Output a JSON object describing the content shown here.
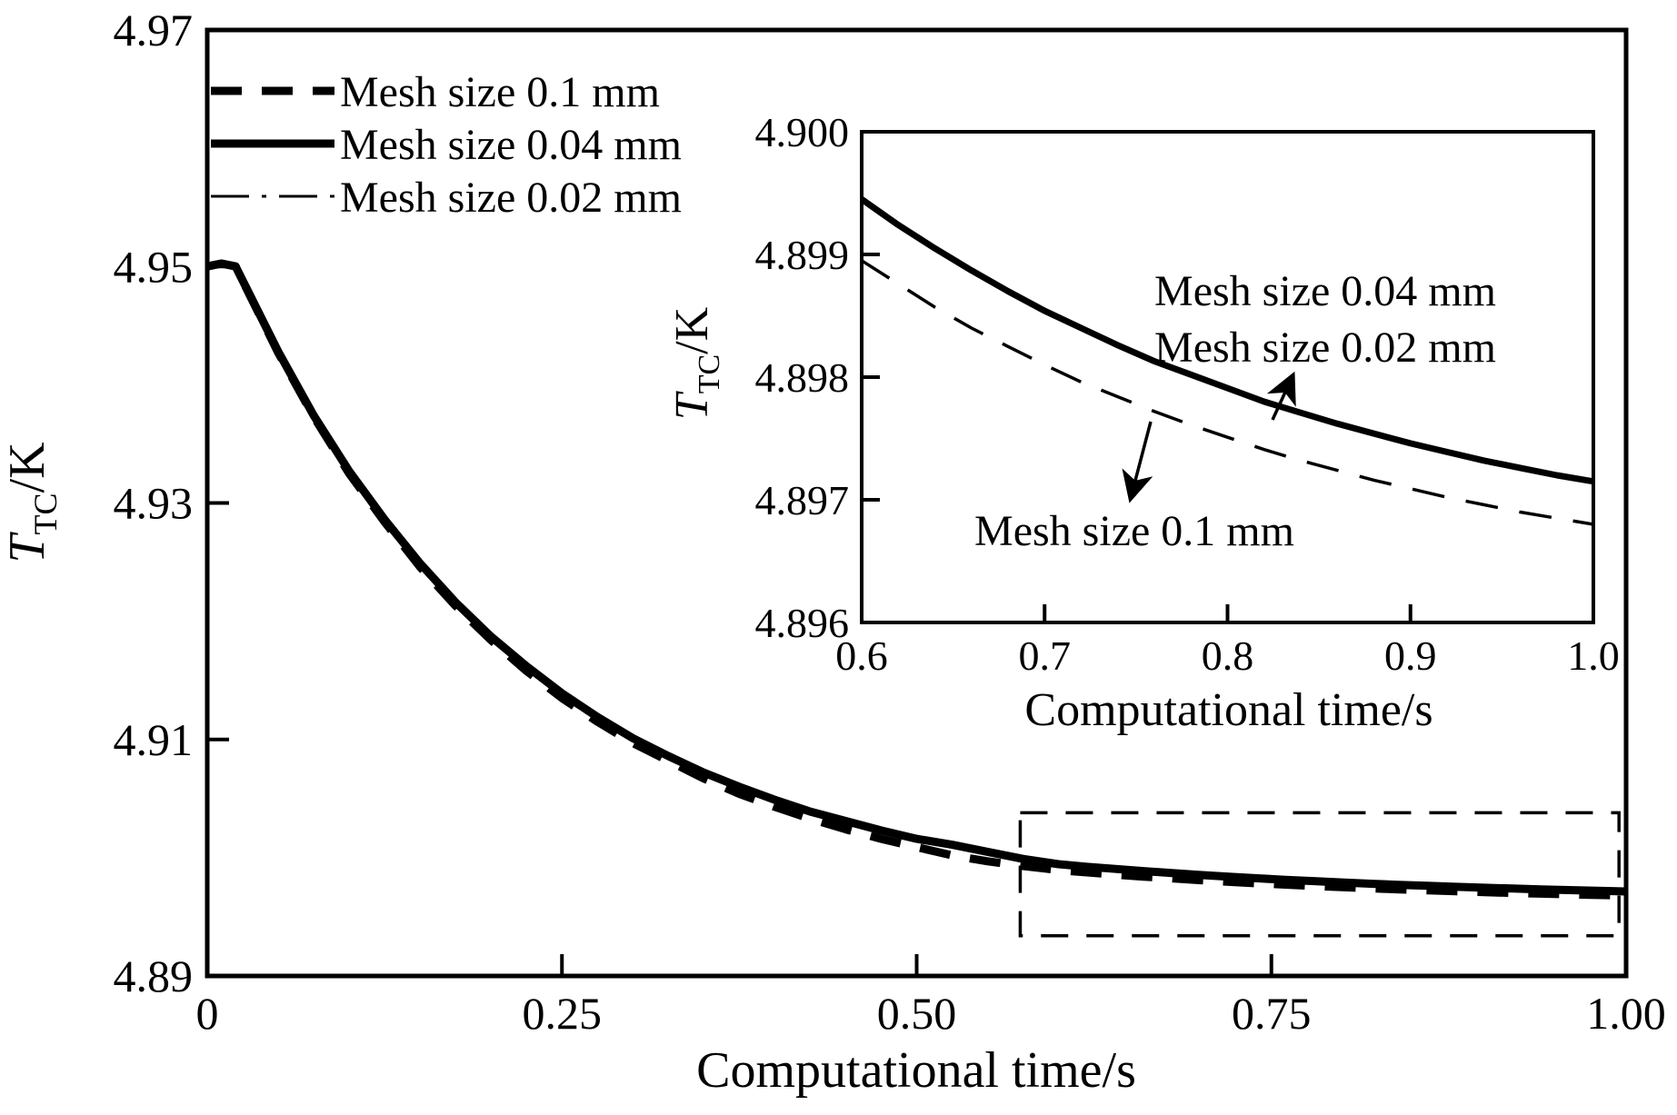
{
  "main": {
    "x_title": "Computational time/s",
    "y_title": {
      "symbol": "T",
      "subscript": "TC",
      "unit": "/K"
    },
    "x_range": [
      0,
      1
    ],
    "y_range": [
      4.89,
      4.97
    ],
    "x_ticks": [
      {
        "v": 0,
        "label": "0"
      },
      {
        "v": 0.25,
        "label": "0.25"
      },
      {
        "v": 0.5,
        "label": "0.50"
      },
      {
        "v": 0.75,
        "label": "0.75"
      },
      {
        "v": 1,
        "label": "1.00"
      }
    ],
    "y_ticks": [
      {
        "v": 4.89,
        "label": "4.89"
      },
      {
        "v": 4.91,
        "label": "4.91"
      },
      {
        "v": 4.93,
        "label": "4.93"
      },
      {
        "v": 4.95,
        "label": "4.95"
      },
      {
        "v": 4.97,
        "label": "4.97"
      }
    ],
    "legend": [
      {
        "label": "Mesh size 0.1 mm",
        "style": "dashed-thick"
      },
      {
        "label": "Mesh size 0.04 mm",
        "style": "solid-thick"
      },
      {
        "label": "Mesh size 0.02 mm",
        "style": "dashdot-thin"
      }
    ]
  },
  "inset": {
    "x_title": "Computational time/s",
    "y_title": {
      "symbol": "T",
      "subscript": "TC",
      "unit": "/K"
    },
    "x_range": [
      0.6,
      1.0
    ],
    "y_range": [
      4.896,
      4.9
    ],
    "x_ticks": [
      {
        "v": 0.6,
        "label": "0.6"
      },
      {
        "v": 0.7,
        "label": "0.7"
      },
      {
        "v": 0.8,
        "label": "0.8"
      },
      {
        "v": 0.9,
        "label": "0.9"
      },
      {
        "v": 1.0,
        "label": "1.0"
      }
    ],
    "y_ticks": [
      {
        "v": 4.896,
        "label": "4.896"
      },
      {
        "v": 4.897,
        "label": "4.897"
      },
      {
        "v": 4.898,
        "label": "4.898"
      },
      {
        "v": 4.899,
        "label": "4.899"
      },
      {
        "v": 4.9,
        "label": "4.900"
      }
    ],
    "annotations": {
      "solid_line1": "Mesh size 0.04 mm",
      "solid_line2": "Mesh size 0.02 mm",
      "dashed": "Mesh size 0.1 mm"
    }
  },
  "chart_data": {
    "type": "line",
    "title": "",
    "xlabel": "Computational time/s",
    "ylabel": "T_TC/K",
    "x_range": [
      0,
      1
    ],
    "y_range": [
      4.89,
      4.97
    ],
    "legend_position": "upper-left",
    "grid": false,
    "zoom_region": {
      "x": [
        0.573,
        0.995
      ],
      "y": [
        4.8934,
        4.9038
      ]
    },
    "inset_axes": {
      "x_range": [
        0.6,
        1.0
      ],
      "y_range": [
        4.896,
        4.9
      ]
    },
    "series": [
      {
        "name": "Mesh size 0.1 mm",
        "style": "dashed-thick",
        "points": [
          [
            0,
            4.95
          ],
          [
            0.01,
            4.95025
          ],
          [
            0.02,
            4.95
          ],
          [
            0.05,
            4.9427
          ],
          [
            0.075,
            4.9373
          ],
          [
            0.1,
            4.9325
          ],
          [
            0.125,
            4.9284
          ],
          [
            0.15,
            4.9246
          ],
          [
            0.175,
            4.9213
          ],
          [
            0.2,
            4.9184
          ],
          [
            0.225,
            4.9158
          ],
          [
            0.25,
            4.9135
          ],
          [
            0.275,
            4.9115
          ],
          [
            0.3,
            4.9097
          ],
          [
            0.325,
            4.9082
          ],
          [
            0.35,
            4.9067
          ],
          [
            0.375,
            4.9054
          ],
          [
            0.4,
            4.9043
          ],
          [
            0.425,
            4.9033
          ],
          [
            0.45,
            4.9024
          ],
          [
            0.475,
            4.9016
          ],
          [
            0.5,
            4.9009
          ],
          [
            0.525,
            4.9002
          ],
          [
            0.55,
            4.8997
          ],
          [
            0.575,
            4.8993
          ],
          [
            0.6,
            4.89895
          ],
          [
            0.62,
            4.89876
          ],
          [
            0.64,
            4.89857
          ],
          [
            0.66,
            4.8984
          ],
          [
            0.68,
            4.89825
          ],
          [
            0.7,
            4.8981
          ],
          [
            0.72,
            4.89796
          ],
          [
            0.74,
            4.89784
          ],
          [
            0.76,
            4.89772
          ],
          [
            0.78,
            4.89761
          ],
          [
            0.8,
            4.89751
          ],
          [
            0.82,
            4.89741
          ],
          [
            0.84,
            4.89732
          ],
          [
            0.86,
            4.89724
          ],
          [
            0.88,
            4.89716
          ],
          [
            0.9,
            4.89709
          ],
          [
            0.92,
            4.89702
          ],
          [
            0.94,
            4.89696
          ],
          [
            0.96,
            4.8969
          ],
          [
            0.98,
            4.89685
          ],
          [
            1,
            4.8968
          ]
        ]
      },
      {
        "name": "Mesh size 0.04 mm",
        "style": "solid-thick",
        "points": [
          [
            0,
            4.95
          ],
          [
            0.01,
            4.95025
          ],
          [
            0.02,
            4.95
          ],
          [
            0.05,
            4.9428
          ],
          [
            0.075,
            4.9374
          ],
          [
            0.1,
            4.9327
          ],
          [
            0.125,
            4.9286
          ],
          [
            0.15,
            4.9249
          ],
          [
            0.175,
            4.9216
          ],
          [
            0.2,
            4.9187
          ],
          [
            0.225,
            4.9162
          ],
          [
            0.25,
            4.9139
          ],
          [
            0.275,
            4.9119
          ],
          [
            0.3,
            4.9101
          ],
          [
            0.325,
            4.9086
          ],
          [
            0.35,
            4.9072
          ],
          [
            0.375,
            4.906
          ],
          [
            0.4,
            4.9049
          ],
          [
            0.425,
            4.9039
          ],
          [
            0.45,
            4.9031
          ],
          [
            0.475,
            4.9023
          ],
          [
            0.5,
            4.9016
          ],
          [
            0.525,
            4.9011
          ],
          [
            0.55,
            4.9005
          ],
          [
            0.575,
            4.8999
          ],
          [
            0.6,
            4.89945
          ],
          [
            0.62,
            4.89924
          ],
          [
            0.64,
            4.89905
          ],
          [
            0.66,
            4.89887
          ],
          [
            0.68,
            4.8987
          ],
          [
            0.7,
            4.89854
          ],
          [
            0.72,
            4.8984
          ],
          [
            0.74,
            4.89826
          ],
          [
            0.76,
            4.89813
          ],
          [
            0.78,
            4.89802
          ],
          [
            0.8,
            4.89791
          ],
          [
            0.82,
            4.8978
          ],
          [
            0.84,
            4.89771
          ],
          [
            0.86,
            4.89762
          ],
          [
            0.88,
            4.89754
          ],
          [
            0.9,
            4.89746
          ],
          [
            0.92,
            4.89739
          ],
          [
            0.94,
            4.89732
          ],
          [
            0.96,
            4.89726
          ],
          [
            0.98,
            4.8972
          ],
          [
            1,
            4.89715
          ]
        ]
      },
      {
        "name": "Mesh size 0.02 mm",
        "style": "dashdot-thin",
        "points": [
          [
            0,
            4.95
          ],
          [
            0.01,
            4.95025
          ],
          [
            0.02,
            4.95
          ],
          [
            0.05,
            4.9428
          ],
          [
            0.075,
            4.9374
          ],
          [
            0.1,
            4.9327
          ],
          [
            0.125,
            4.9286
          ],
          [
            0.15,
            4.9249
          ],
          [
            0.175,
            4.9216
          ],
          [
            0.2,
            4.9187
          ],
          [
            0.225,
            4.9162
          ],
          [
            0.25,
            4.9139
          ],
          [
            0.275,
            4.9119
          ],
          [
            0.3,
            4.9101
          ],
          [
            0.325,
            4.9086
          ],
          [
            0.35,
            4.9072
          ],
          [
            0.375,
            4.906
          ],
          [
            0.4,
            4.9049
          ],
          [
            0.425,
            4.9039
          ],
          [
            0.45,
            4.9031
          ],
          [
            0.475,
            4.9023
          ],
          [
            0.5,
            4.9016
          ],
          [
            0.525,
            4.9011
          ],
          [
            0.55,
            4.9005
          ],
          [
            0.575,
            4.8999
          ],
          [
            0.6,
            4.89945
          ],
          [
            0.62,
            4.89924
          ],
          [
            0.64,
            4.89905
          ],
          [
            0.66,
            4.89887
          ],
          [
            0.68,
            4.8987
          ],
          [
            0.7,
            4.89854
          ],
          [
            0.72,
            4.8984
          ],
          [
            0.74,
            4.89826
          ],
          [
            0.76,
            4.89813
          ],
          [
            0.78,
            4.89802
          ],
          [
            0.8,
            4.89791
          ],
          [
            0.82,
            4.8978
          ],
          [
            0.84,
            4.89771
          ],
          [
            0.86,
            4.89762
          ],
          [
            0.88,
            4.89754
          ],
          [
            0.9,
            4.89746
          ],
          [
            0.92,
            4.89739
          ],
          [
            0.94,
            4.89732
          ],
          [
            0.96,
            4.89726
          ],
          [
            0.98,
            4.8972
          ],
          [
            1,
            4.89715
          ]
        ]
      }
    ],
    "colors": {
      "line": "#000000",
      "background": "#ffffff"
    }
  }
}
